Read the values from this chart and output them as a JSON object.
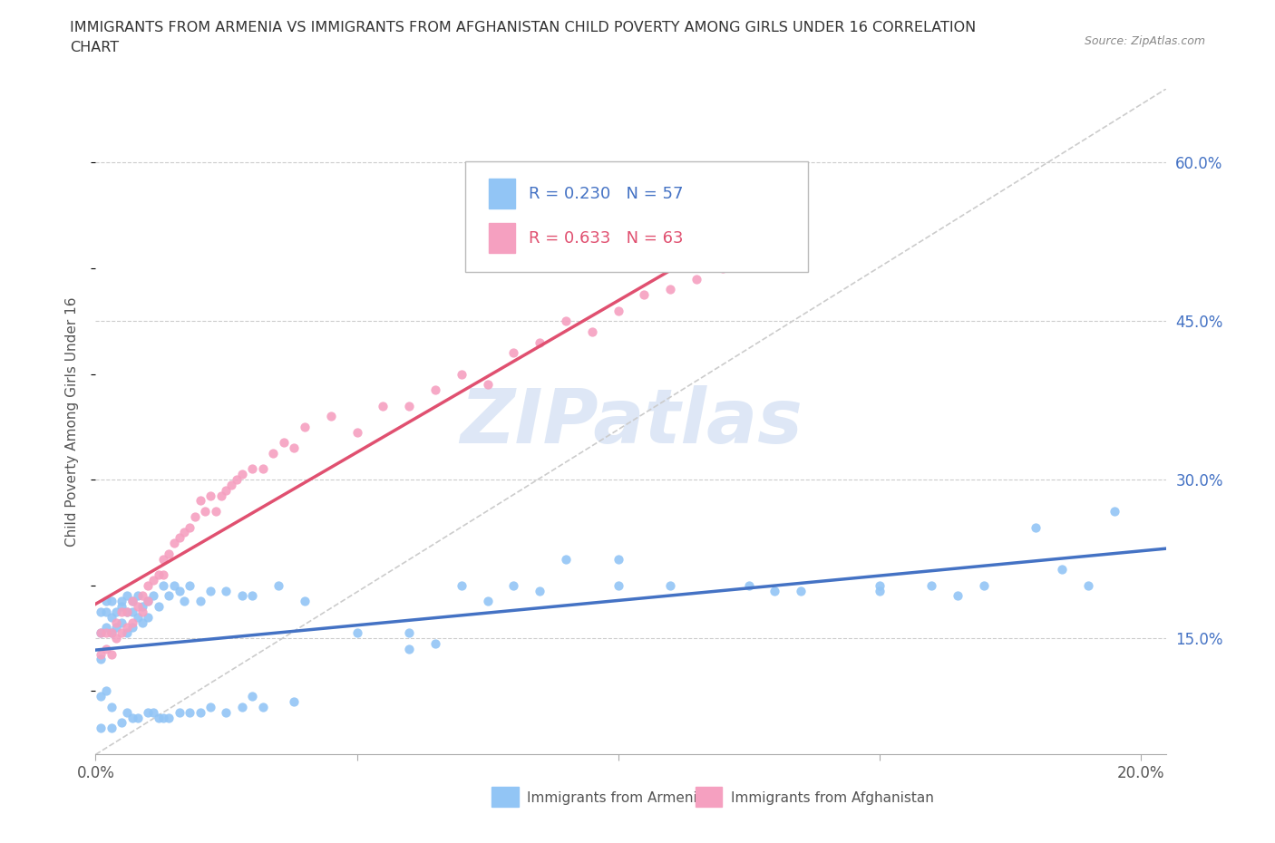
{
  "title_line1": "IMMIGRANTS FROM ARMENIA VS IMMIGRANTS FROM AFGHANISTAN CHILD POVERTY AMONG GIRLS UNDER 16 CORRELATION",
  "title_line2": "CHART",
  "source": "Source: ZipAtlas.com",
  "ylabel": "Child Poverty Among Girls Under 16",
  "xlim": [
    0.0,
    0.205
  ],
  "ylim": [
    0.04,
    0.67
  ],
  "xticks": [
    0.0,
    0.05,
    0.1,
    0.15,
    0.2
  ],
  "xticklabels": [
    "0.0%",
    "",
    "",
    "",
    "20.0%"
  ],
  "yticks": [
    0.15,
    0.3,
    0.45,
    0.6
  ],
  "yticklabels": [
    "15.0%",
    "30.0%",
    "45.0%",
    "60.0%"
  ],
  "armenia_color": "#92c5f5",
  "afghanistan_color": "#f5a0c0",
  "armenia_line_color": "#4472c4",
  "afghanistan_line_color": "#e05070",
  "diag_color": "#cccccc",
  "grid_color": "#cccccc",
  "watermark_color": "#d0dff0",
  "watermark_text": "ZIPatlas",
  "legend_R_armenia": "R = 0.230",
  "legend_N_armenia": "N = 57",
  "legend_R_afghanistan": "R = 0.633",
  "legend_N_afghanistan": "N = 63",
  "legend_label_armenia": "Immigrants from Armenia",
  "legend_label_afghanistan": "Immigrants from Afghanistan",
  "armenia_scatter_x": [
    0.001,
    0.001,
    0.001,
    0.002,
    0.002,
    0.002,
    0.003,
    0.003,
    0.003,
    0.004,
    0.004,
    0.005,
    0.005,
    0.005,
    0.006,
    0.006,
    0.006,
    0.007,
    0.007,
    0.007,
    0.008,
    0.008,
    0.009,
    0.009,
    0.01,
    0.01,
    0.011,
    0.012,
    0.013,
    0.014,
    0.015,
    0.016,
    0.017,
    0.018,
    0.02,
    0.022,
    0.025,
    0.028,
    0.03,
    0.035,
    0.04,
    0.05,
    0.06,
    0.07,
    0.08,
    0.09,
    0.1,
    0.11,
    0.125,
    0.135,
    0.15,
    0.16,
    0.17,
    0.18,
    0.185,
    0.19,
    0.195
  ],
  "armenia_scatter_y": [
    0.175,
    0.155,
    0.13,
    0.185,
    0.175,
    0.16,
    0.185,
    0.17,
    0.155,
    0.175,
    0.16,
    0.185,
    0.18,
    0.165,
    0.19,
    0.175,
    0.155,
    0.185,
    0.175,
    0.16,
    0.19,
    0.17,
    0.18,
    0.165,
    0.185,
    0.17,
    0.19,
    0.18,
    0.2,
    0.19,
    0.2,
    0.195,
    0.185,
    0.2,
    0.185,
    0.195,
    0.195,
    0.19,
    0.19,
    0.2,
    0.185,
    0.155,
    0.155,
    0.2,
    0.2,
    0.225,
    0.225,
    0.2,
    0.2,
    0.195,
    0.2,
    0.2,
    0.2,
    0.255,
    0.215,
    0.2,
    0.27
  ],
  "armenia_extra_x": [
    0.001,
    0.001,
    0.002,
    0.003,
    0.003,
    0.005,
    0.006,
    0.007,
    0.008,
    0.01,
    0.011,
    0.012,
    0.013,
    0.014,
    0.016,
    0.018,
    0.02,
    0.022,
    0.025,
    0.028,
    0.03,
    0.032,
    0.038,
    0.06,
    0.065,
    0.075,
    0.085,
    0.1,
    0.13,
    0.15,
    0.165
  ],
  "armenia_extra_y": [
    0.095,
    0.065,
    0.1,
    0.065,
    0.085,
    0.07,
    0.08,
    0.075,
    0.075,
    0.08,
    0.08,
    0.075,
    0.075,
    0.075,
    0.08,
    0.08,
    0.08,
    0.085,
    0.08,
    0.085,
    0.095,
    0.085,
    0.09,
    0.14,
    0.145,
    0.185,
    0.195,
    0.2,
    0.195,
    0.195,
    0.19
  ],
  "afghanistan_scatter_x": [
    0.001,
    0.001,
    0.002,
    0.002,
    0.003,
    0.003,
    0.004,
    0.004,
    0.005,
    0.005,
    0.006,
    0.006,
    0.007,
    0.007,
    0.008,
    0.009,
    0.009,
    0.01,
    0.01,
    0.011,
    0.012,
    0.013,
    0.013,
    0.014,
    0.015,
    0.016,
    0.017,
    0.018,
    0.019,
    0.02,
    0.021,
    0.022,
    0.023,
    0.024,
    0.025,
    0.026,
    0.027,
    0.028,
    0.03,
    0.032,
    0.034,
    0.036,
    0.038,
    0.04,
    0.045,
    0.05,
    0.055,
    0.06,
    0.065,
    0.07,
    0.075,
    0.08,
    0.085,
    0.09,
    0.095,
    0.1,
    0.105,
    0.11,
    0.115,
    0.12,
    0.125,
    0.13,
    0.135
  ],
  "afghanistan_scatter_y": [
    0.155,
    0.135,
    0.155,
    0.14,
    0.155,
    0.135,
    0.165,
    0.15,
    0.175,
    0.155,
    0.175,
    0.16,
    0.185,
    0.165,
    0.18,
    0.19,
    0.175,
    0.2,
    0.185,
    0.205,
    0.21,
    0.225,
    0.21,
    0.23,
    0.24,
    0.245,
    0.25,
    0.255,
    0.265,
    0.28,
    0.27,
    0.285,
    0.27,
    0.285,
    0.29,
    0.295,
    0.3,
    0.305,
    0.31,
    0.31,
    0.325,
    0.335,
    0.33,
    0.35,
    0.36,
    0.345,
    0.37,
    0.37,
    0.385,
    0.4,
    0.39,
    0.42,
    0.43,
    0.45,
    0.44,
    0.46,
    0.475,
    0.48,
    0.49,
    0.5,
    0.51,
    0.52,
    0.53
  ]
}
